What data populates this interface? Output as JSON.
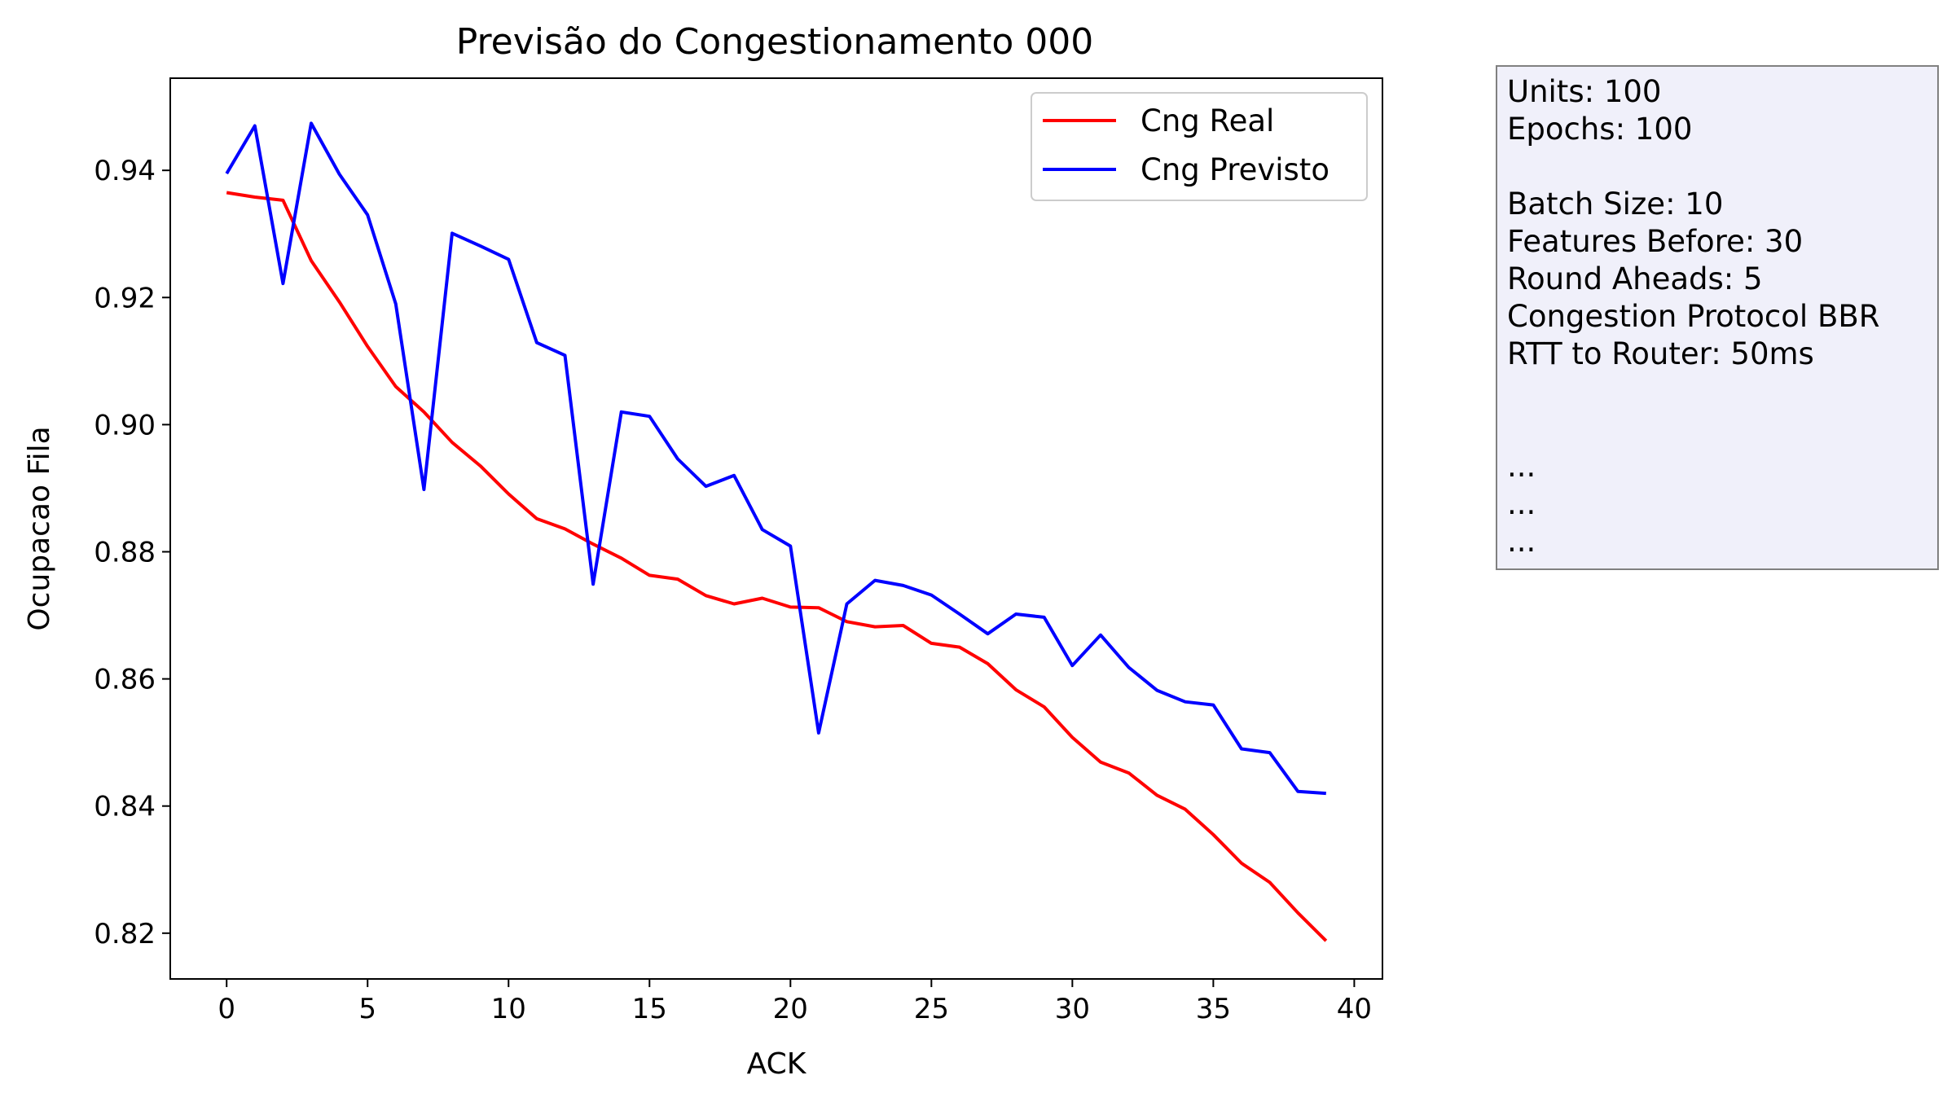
{
  "chart_data": {
    "type": "line",
    "title": "Previsão do Congestionamento 000",
    "xlabel": "ACK",
    "ylabel": "Ocupacao Fila",
    "xlim": [
      -2,
      41
    ],
    "ylim": [
      0.8128,
      0.9545
    ],
    "xticks": [
      0,
      5,
      10,
      15,
      20,
      25,
      30,
      35,
      40
    ],
    "yticks": [
      0.82,
      0.84,
      0.86,
      0.88,
      0.9,
      0.92,
      0.94
    ],
    "ytick_labels": [
      "0.82",
      "0.84",
      "0.86",
      "0.88",
      "0.90",
      "0.92",
      "0.94"
    ],
    "grid": false,
    "legend_position": "top-right",
    "x": [
      0,
      1,
      2,
      3,
      4,
      5,
      6,
      7,
      8,
      9,
      10,
      11,
      12,
      13,
      14,
      15,
      16,
      17,
      18,
      19,
      20,
      21,
      22,
      23,
      24,
      25,
      26,
      27,
      28,
      29,
      30,
      31,
      32,
      33,
      34,
      35,
      36,
      37,
      38,
      39
    ],
    "series": [
      {
        "name": "Cng Real",
        "color": "#ff0000",
        "values": [
          0.9365,
          0.9358,
          0.9353,
          0.9258,
          0.9193,
          0.9123,
          0.906,
          0.902,
          0.8972,
          0.8935,
          0.8891,
          0.8852,
          0.8836,
          0.8812,
          0.879,
          0.8763,
          0.8757,
          0.8731,
          0.8718,
          0.8727,
          0.8713,
          0.8712,
          0.869,
          0.8682,
          0.8684,
          0.8656,
          0.865,
          0.8624,
          0.8583,
          0.8556,
          0.8508,
          0.8469,
          0.8452,
          0.8417,
          0.8395,
          0.8355,
          0.831,
          0.828,
          0.8232,
          0.8188
        ]
      },
      {
        "name": "Cng Previsto",
        "color": "#0000ff",
        "values": [
          0.9395,
          0.947,
          0.9222,
          0.9474,
          0.9394,
          0.933,
          0.919,
          0.8898,
          0.9301,
          0.9281,
          0.926,
          0.9129,
          0.9109,
          0.8749,
          0.902,
          0.9013,
          0.8946,
          0.8903,
          0.892,
          0.8835,
          0.8809,
          0.8515,
          0.8718,
          0.8755,
          0.8747,
          0.8732,
          0.8702,
          0.8671,
          0.8702,
          0.8697,
          0.8621,
          0.8669,
          0.8618,
          0.8582,
          0.8564,
          0.8559,
          0.849,
          0.8484,
          0.8423,
          0.842
        ]
      }
    ]
  },
  "info_box": {
    "lines": [
      "Units: 100",
      "Epochs: 100",
      "",
      "Batch Size: 10",
      "Features Before: 30",
      "Round Aheads: 5",
      "Congestion Protocol BBR",
      "RTT to Router: 50ms",
      "",
      "",
      "...",
      "...",
      "..."
    ],
    "background": "#f0f0fa",
    "border_color": "#808080"
  }
}
